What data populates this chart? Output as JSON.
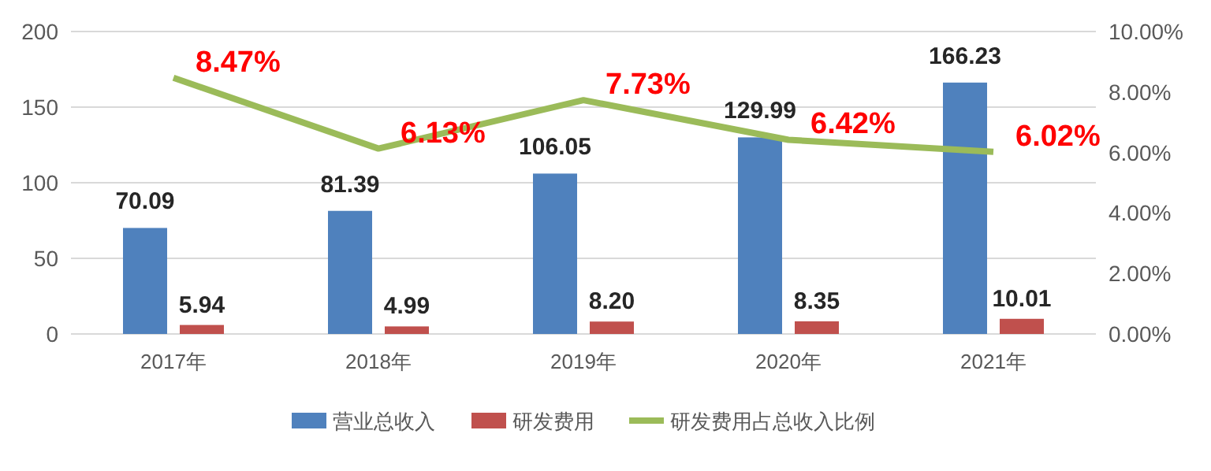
{
  "chart_data": {
    "type": "bar",
    "categories": [
      "2017年",
      "2018年",
      "2019年",
      "2020年",
      "2021年"
    ],
    "series": [
      {
        "name": "营业总收入",
        "color": "#4f81bd",
        "values": [
          70.09,
          81.39,
          106.05,
          129.99,
          166.23
        ],
        "value_labels": [
          "70.09",
          "81.39",
          "106.05",
          "129.99",
          "166.23"
        ]
      },
      {
        "name": "研发费用",
        "color": "#c0504d",
        "values": [
          5.94,
          4.99,
          8.2,
          8.35,
          10.01
        ],
        "value_labels": [
          "5.94",
          "4.99",
          "8.20",
          "8.35",
          "10.01"
        ]
      },
      {
        "name": "研发费用占总收入比例",
        "type": "line",
        "axis": "y2",
        "color": "#9bbb59",
        "values": [
          8.47,
          6.13,
          7.73,
          6.42,
          6.02
        ],
        "value_labels": [
          "8.47%",
          "6.13%",
          "7.73%",
          "6.42%",
          "6.02%"
        ]
      }
    ],
    "ylim": [
      0,
      200
    ],
    "yticks": [
      0,
      50,
      100,
      150,
      200
    ],
    "y2lim": [
      0,
      10
    ],
    "y2ticks": [
      {
        "value": 0,
        "label": "0.00%"
      },
      {
        "value": 2,
        "label": "2.00%"
      },
      {
        "value": 4,
        "label": "4.00%"
      },
      {
        "value": 6,
        "label": "6.00%"
      },
      {
        "value": 8,
        "label": "8.00%"
      },
      {
        "value": 10,
        "label": "10.00%"
      }
    ],
    "grid": "y",
    "legend": "bottom",
    "marker": "none",
    "line_style": "solid"
  }
}
